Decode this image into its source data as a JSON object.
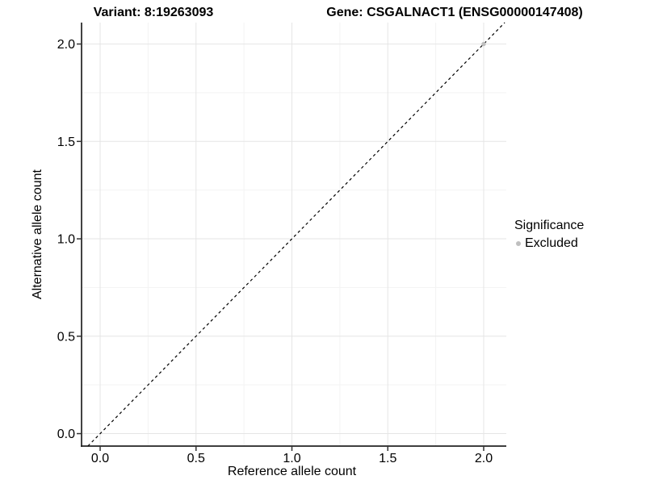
{
  "titles": {
    "variant": "Variant: 8:19263093",
    "gene": "Gene: CSGALNACT1 (ENSG00000147408)"
  },
  "chart_data": {
    "type": "scatter",
    "xlabel": "Reference allele count",
    "ylabel": "Alternative allele count",
    "xlim": [
      -0.097,
      2.118
    ],
    "ylim": [
      -0.064,
      2.11
    ],
    "x_ticks": [
      0.0,
      0.5,
      1.0,
      1.5,
      2.0
    ],
    "y_ticks": [
      0.0,
      0.5,
      1.0,
      1.5,
      2.0
    ],
    "x_tick_labels": [
      "0.0",
      "0.5",
      "1.0",
      "1.5",
      "2.0"
    ],
    "y_tick_labels": [
      "0.0",
      "0.5",
      "1.0",
      "1.5",
      "2.0"
    ],
    "x_minor_ticks": [
      0.25,
      0.75,
      1.25,
      1.75
    ],
    "y_minor_ticks": [
      0.25,
      0.75,
      1.25,
      1.75
    ],
    "grid": true,
    "series": [
      {
        "name": "Excluded",
        "color": "#bfbfbf",
        "points": [
          {
            "x": 2.0,
            "y": 2.0
          }
        ]
      }
    ],
    "reference_line": {
      "type": "identity",
      "style": "dashed",
      "color": "#000000"
    },
    "legend": {
      "title": "Significance",
      "position": "right",
      "items": [
        {
          "label": "Excluded",
          "color": "#bfbfbf"
        }
      ]
    }
  },
  "colors": {
    "background": "#ffffff",
    "axis_line": "#222222",
    "tick_mark": "#333333",
    "grid_major": "#e5e5e5",
    "grid_minor": "#f3f3f3",
    "text": "#000000"
  }
}
